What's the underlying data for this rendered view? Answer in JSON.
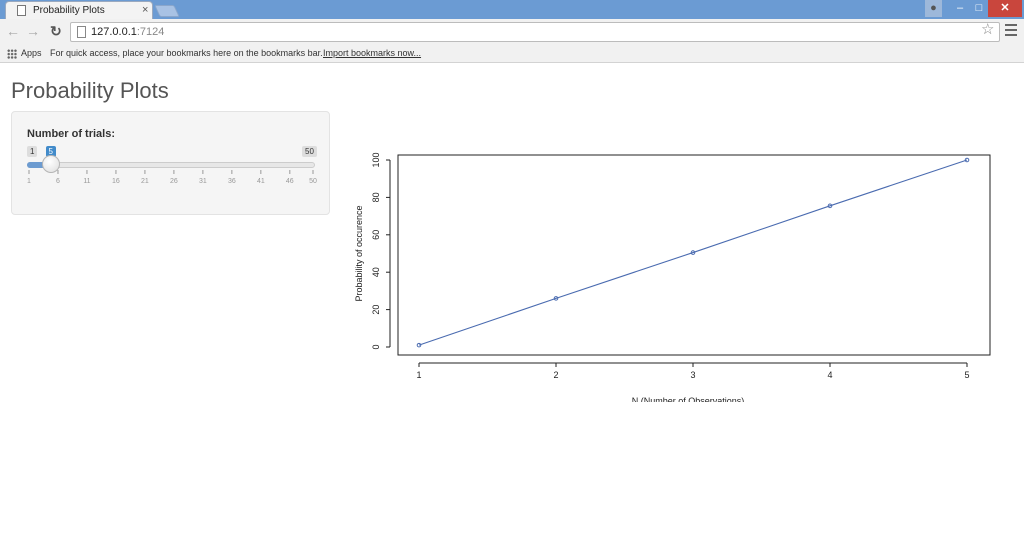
{
  "browser": {
    "tab_title": "Probability Plots",
    "close_glyph": "×",
    "url_host": "127.0.0.1",
    "url_port": ":7124",
    "bookmarks_apps": "Apps",
    "bookmarks_hint": "For quick access, place your bookmarks here on the bookmarks bar.",
    "bookmarks_import": "Import bookmarks now..."
  },
  "page": {
    "title": "Probability Plots"
  },
  "slider": {
    "label": "Number of trials:",
    "min": 1,
    "max": 50,
    "value": 5,
    "ticks": [
      "1",
      "6",
      "11",
      "16",
      "21",
      "26",
      "31",
      "36",
      "41",
      "46",
      "50"
    ],
    "accent": "#428bca"
  },
  "chart_data": {
    "type": "line",
    "x": [
      1,
      2,
      3,
      4,
      5
    ],
    "y": [
      1,
      26,
      50.5,
      75.5,
      100
    ],
    "xlabel": "N (Number of Observations)",
    "ylabel": "Probability of occurence",
    "xlim": [
      1,
      5
    ],
    "ylim": [
      0,
      100
    ],
    "xticks": [
      1,
      2,
      3,
      4,
      5
    ],
    "yticks": [
      0,
      20,
      40,
      60,
      80,
      100
    ],
    "line_color": "#4a6bb0",
    "grid": false
  }
}
